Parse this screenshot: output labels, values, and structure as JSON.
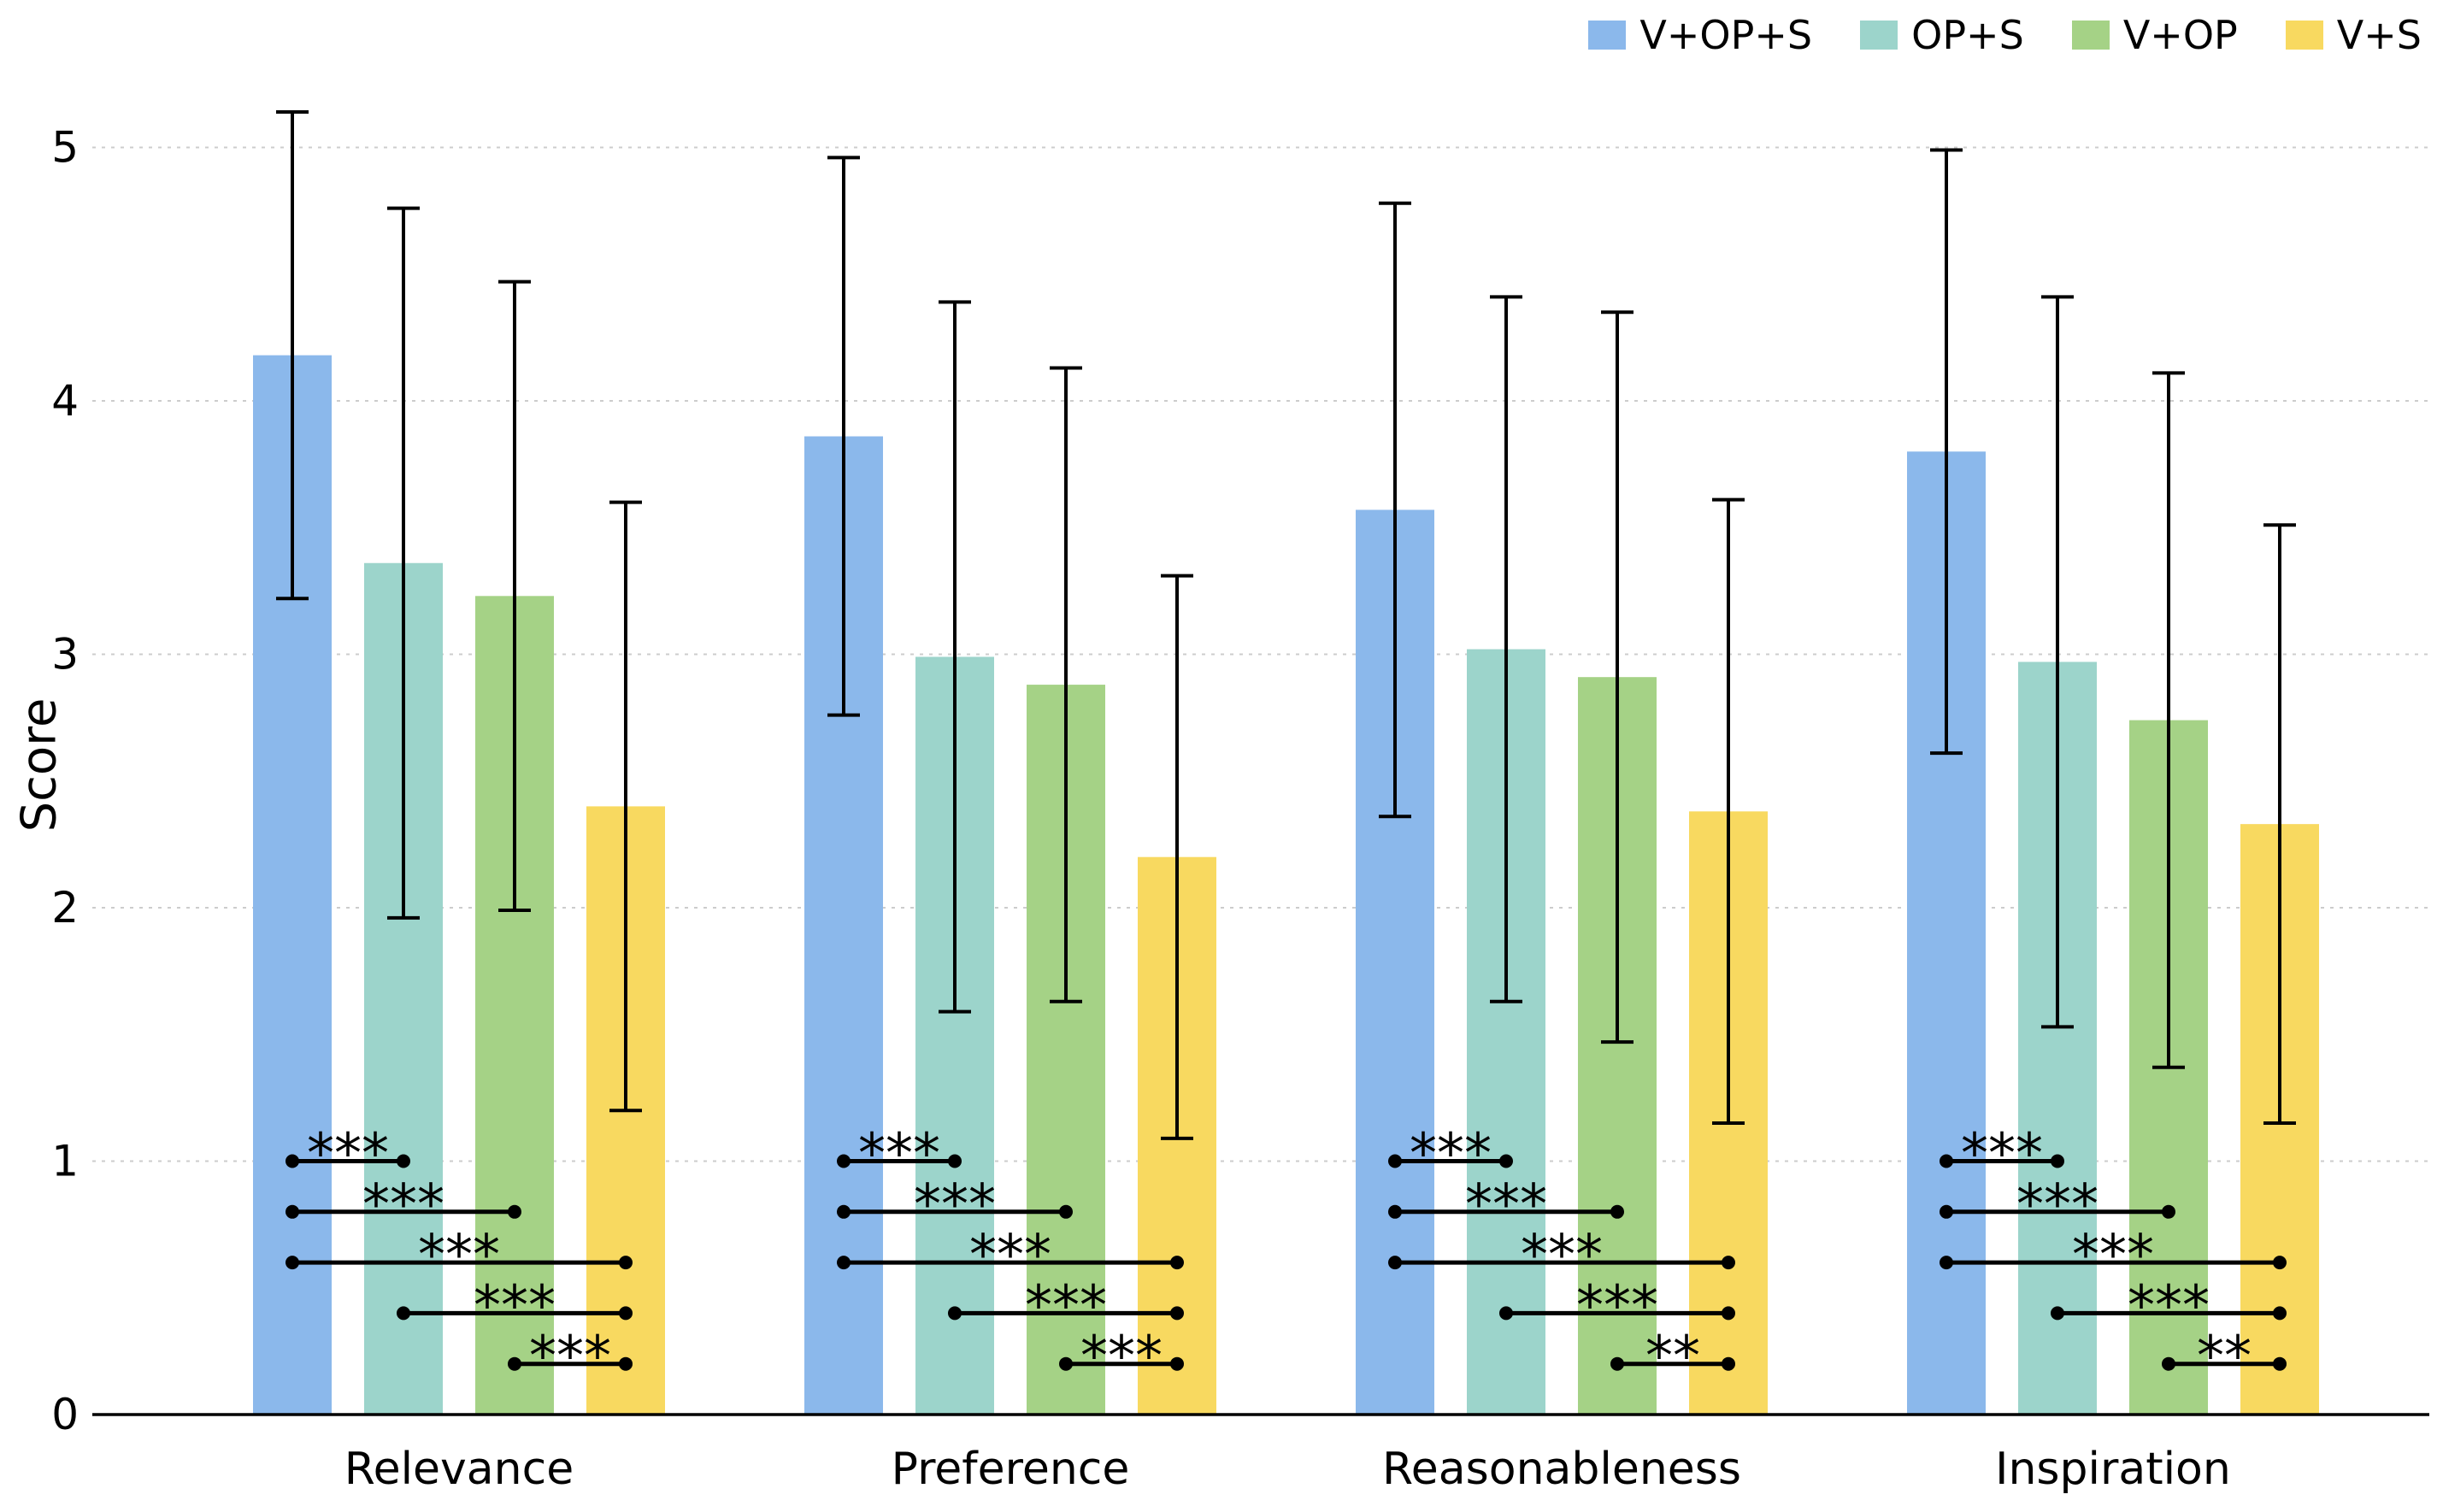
{
  "chart_data": {
    "type": "bar",
    "title": "",
    "xlabel": "",
    "ylabel": "Score",
    "ylim": [
      0,
      5.3
    ],
    "yticks": [
      0,
      1,
      2,
      3,
      4,
      5
    ],
    "grid": {
      "axis": "y",
      "style": "dashed",
      "color": "#cccccc"
    },
    "legend_position": "top-right",
    "categories": [
      "Relevance",
      "Preference",
      "Reasonableness",
      "Inspiration"
    ],
    "series": [
      {
        "name": "V+OP+S",
        "color": "#8BB8EB",
        "values": [
          4.18,
          3.86,
          3.57,
          3.8
        ],
        "errors": [
          0.96,
          1.1,
          1.21,
          1.19
        ]
      },
      {
        "name": "OP+S",
        "color": "#9CD4CB",
        "values": [
          3.36,
          2.99,
          3.02,
          2.97
        ],
        "errors": [
          1.4,
          1.4,
          1.39,
          1.44
        ]
      },
      {
        "name": "V+OP",
        "color": "#A5D286",
        "values": [
          3.23,
          2.88,
          2.91,
          2.74
        ],
        "errors": [
          1.24,
          1.25,
          1.44,
          1.37
        ]
      },
      {
        "name": "V+S",
        "color": "#F8D960",
        "values": [
          2.4,
          2.2,
          2.38,
          2.33
        ],
        "errors": [
          1.2,
          1.11,
          1.23,
          1.18
        ]
      }
    ],
    "error_bar": {
      "color": "#000000",
      "capsize": true
    },
    "significance": [
      {
        "category": "Relevance",
        "brackets": [
          {
            "from": "V+OP+S",
            "to": "OP+S",
            "y": 1.0,
            "label": "***"
          },
          {
            "from": "V+OP+S",
            "to": "V+OP",
            "y": 0.8,
            "label": "***"
          },
          {
            "from": "V+OP+S",
            "to": "V+S",
            "y": 0.6,
            "label": "***"
          },
          {
            "from": "OP+S",
            "to": "V+S",
            "y": 0.4,
            "label": "***"
          },
          {
            "from": "V+OP",
            "to": "V+S",
            "y": 0.2,
            "label": "***"
          }
        ]
      },
      {
        "category": "Preference",
        "brackets": [
          {
            "from": "V+OP+S",
            "to": "OP+S",
            "y": 1.0,
            "label": "***"
          },
          {
            "from": "V+OP+S",
            "to": "V+OP",
            "y": 0.8,
            "label": "***"
          },
          {
            "from": "V+OP+S",
            "to": "V+S",
            "y": 0.6,
            "label": "***"
          },
          {
            "from": "OP+S",
            "to": "V+S",
            "y": 0.4,
            "label": "***"
          },
          {
            "from": "V+OP",
            "to": "V+S",
            "y": 0.2,
            "label": "***"
          }
        ]
      },
      {
        "category": "Reasonableness",
        "brackets": [
          {
            "from": "V+OP+S",
            "to": "OP+S",
            "y": 1.0,
            "label": "***"
          },
          {
            "from": "V+OP+S",
            "to": "V+OP",
            "y": 0.8,
            "label": "***"
          },
          {
            "from": "V+OP+S",
            "to": "V+S",
            "y": 0.6,
            "label": "***"
          },
          {
            "from": "OP+S",
            "to": "V+S",
            "y": 0.4,
            "label": "***"
          },
          {
            "from": "V+OP",
            "to": "V+S",
            "y": 0.2,
            "label": "**"
          }
        ]
      },
      {
        "category": "Inspiration",
        "brackets": [
          {
            "from": "V+OP+S",
            "to": "OP+S",
            "y": 1.0,
            "label": "***"
          },
          {
            "from": "V+OP+S",
            "to": "V+OP",
            "y": 0.8,
            "label": "***"
          },
          {
            "from": "V+OP+S",
            "to": "V+S",
            "y": 0.6,
            "label": "***"
          },
          {
            "from": "OP+S",
            "to": "V+S",
            "y": 0.4,
            "label": "***"
          },
          {
            "from": "V+OP",
            "to": "V+S",
            "y": 0.2,
            "label": "**"
          }
        ]
      }
    ]
  }
}
